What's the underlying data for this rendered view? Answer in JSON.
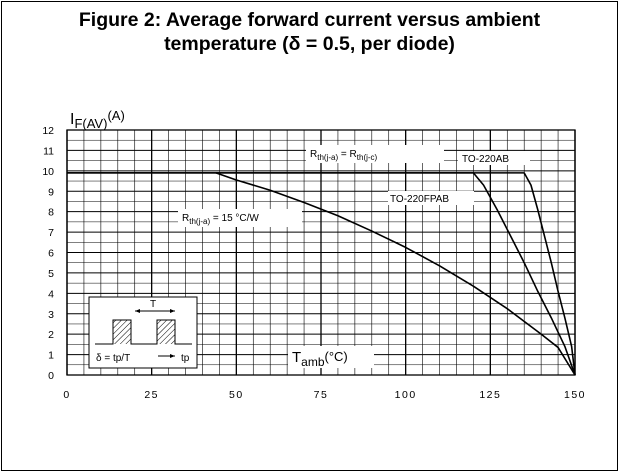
{
  "title_line1": "Figure 2: Average forward current versus ambient",
  "title_line2": "temperature (δ = 0.5, per diode)",
  "chart_data": {
    "type": "line",
    "ylabel": {
      "main": "I",
      "sub": "F(AV)",
      "unit": "(A)"
    },
    "xlabel": {
      "main": "T",
      "sub": "amb",
      "unit": "(°C)"
    },
    "xlim": [
      0,
      150
    ],
    "ylim": [
      0,
      12
    ],
    "xticks": [
      0,
      25,
      50,
      75,
      100,
      125,
      150
    ],
    "yticks": [
      0,
      1,
      2,
      3,
      4,
      5,
      6,
      7,
      8,
      9,
      10,
      11,
      12
    ],
    "grid": true,
    "series": [
      {
        "name": "TO-220AB",
        "x": [
          0,
          135,
          137,
          139,
          141,
          143,
          145,
          147,
          149,
          151
        ],
        "y": [
          9.9,
          9.9,
          9.3,
          8.1,
          6.8,
          5.5,
          4.1,
          2.8,
          1.4,
          0
        ]
      },
      {
        "name": "TO-220FPAB",
        "x": [
          0,
          120,
          123,
          127,
          131,
          135,
          139,
          143,
          147,
          151
        ],
        "y": [
          9.9,
          9.9,
          9.3,
          8.1,
          6.8,
          5.5,
          4.1,
          2.8,
          1.4,
          0
        ]
      },
      {
        "name": "Rth(j-a) = 15 °C/W",
        "x": [
          44,
          50,
          60,
          70,
          80,
          90,
          100,
          110,
          120,
          130,
          140,
          145,
          151
        ],
        "y": [
          9.9,
          9.55,
          9.05,
          8.45,
          7.8,
          7.05,
          6.25,
          5.35,
          4.35,
          3.25,
          2.0,
          1.35,
          0
        ]
      }
    ],
    "annotations": {
      "rth_eq": {
        "a": "R",
        "a_sub": "th(j-a)",
        "eq": " = ",
        "b": "R",
        "b_sub": "th(j-c)"
      },
      "to220ab": "TO-220AB",
      "to220fpab": "TO-220FPAB",
      "rth15": {
        "a": "R",
        "a_sub": "th(j-a)",
        "rest": " = 15 °C/W"
      }
    },
    "inset": {
      "period": "T",
      "duty": "δ = tp/T",
      "tp": "tp"
    }
  }
}
